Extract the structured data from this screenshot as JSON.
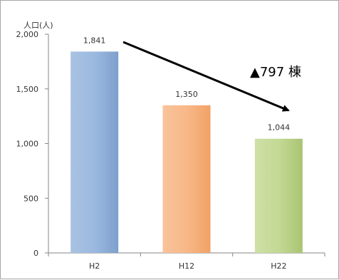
{
  "chart_data": {
    "type": "bar",
    "unit_label": "人口(人)",
    "categories": [
      "H2",
      "H12",
      "H22"
    ],
    "values": [
      1841,
      1350,
      1044
    ],
    "data_labels": [
      "1,841",
      "1,350",
      "1,044"
    ],
    "ylim": [
      0,
      2000
    ],
    "yticks": [
      0,
      500,
      1000,
      1500,
      2000
    ],
    "ytick_labels": [
      "0",
      "500",
      "1,000",
      "1,500",
      "2,000"
    ],
    "grid": false,
    "annotation": "▲797 棟",
    "colors": {
      "H2": "#8fb0d8",
      "H12": "#f7b07a",
      "H22": "#bbd48a"
    }
  }
}
